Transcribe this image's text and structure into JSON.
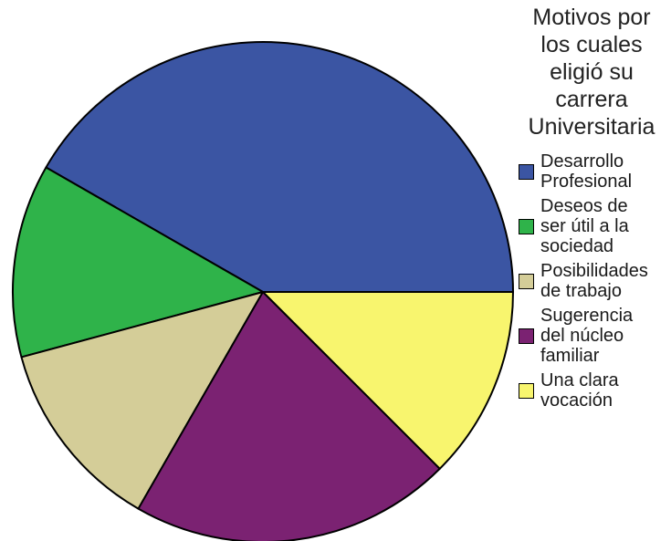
{
  "chart_data": {
    "type": "pie",
    "legend_title": [
      "Motivos por",
      "los cuales",
      "eligió su",
      "carrera",
      "Universitaria"
    ],
    "legend_position": "right",
    "start_angle_deg": 0,
    "direction": "counterclockwise",
    "slices": [
      {
        "label": [
          "Desarrollo",
          "Profesional"
        ],
        "value": 41.7,
        "color": "#3b55a3"
      },
      {
        "label": [
          "Deseos de",
          "ser útil a la",
          "sociedad"
        ],
        "value": 12.5,
        "color": "#2fb34a"
      },
      {
        "label": [
          "Posibilidades",
          "de trabajo"
        ],
        "value": 12.5,
        "color": "#d4cd98"
      },
      {
        "label": [
          "Sugerencia",
          "del núcleo",
          "familiar"
        ],
        "value": 20.8,
        "color": "#7b2272"
      },
      {
        "label": [
          "Una clara",
          "vocación"
        ],
        "value": 12.5,
        "color": "#f8f56e"
      }
    ]
  }
}
